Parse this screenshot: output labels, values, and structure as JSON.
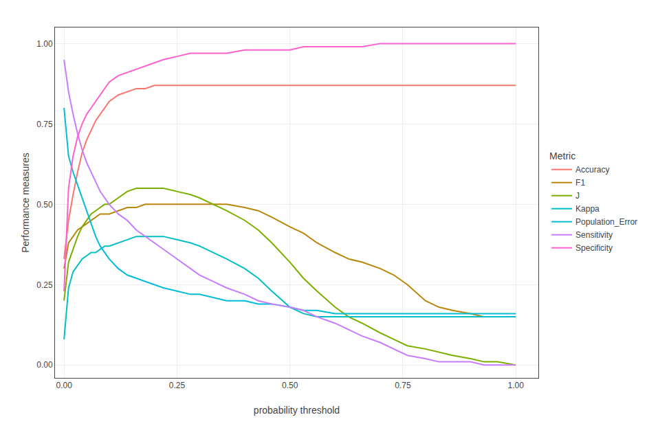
{
  "chart_data": {
    "type": "line",
    "xlabel": "probability threshold",
    "ylabel": "Performance measures",
    "legend_title": "Metric",
    "legend": "right",
    "grid": true,
    "xlim": [
      -0.02,
      1.05
    ],
    "ylim": [
      -0.04,
      1.05
    ],
    "xticks": [
      {
        "value": 0.0,
        "label": "0.00"
      },
      {
        "value": 0.25,
        "label": "0.25"
      },
      {
        "value": 0.5,
        "label": "0.50"
      },
      {
        "value": 0.75,
        "label": "0.75"
      },
      {
        "value": 1.0,
        "label": "1.00"
      }
    ],
    "yticks": [
      {
        "value": 0.0,
        "label": "0.00"
      },
      {
        "value": 0.25,
        "label": "0.25"
      },
      {
        "value": 0.5,
        "label": "0.50"
      },
      {
        "value": 0.75,
        "label": "0.75"
      },
      {
        "value": 1.0,
        "label": "1.00"
      }
    ],
    "x": [
      0.0,
      0.01,
      0.02,
      0.03,
      0.04,
      0.05,
      0.06,
      0.07,
      0.08,
      0.09,
      0.1,
      0.12,
      0.14,
      0.16,
      0.18,
      0.2,
      0.22,
      0.25,
      0.28,
      0.3,
      0.33,
      0.36,
      0.4,
      0.43,
      0.46,
      0.5,
      0.53,
      0.56,
      0.6,
      0.63,
      0.66,
      0.7,
      0.73,
      0.76,
      0.8,
      0.83,
      0.86,
      0.9,
      0.93,
      0.96,
      1.0
    ],
    "series": [
      {
        "name": "Accuracy",
        "color": "#F8766D",
        "values": [
          0.33,
          0.45,
          0.53,
          0.6,
          0.66,
          0.7,
          0.73,
          0.76,
          0.78,
          0.8,
          0.82,
          0.84,
          0.85,
          0.86,
          0.86,
          0.87,
          0.87,
          0.87,
          0.87,
          0.87,
          0.87,
          0.87,
          0.87,
          0.87,
          0.87,
          0.87,
          0.87,
          0.87,
          0.87,
          0.87,
          0.87,
          0.87,
          0.87,
          0.87,
          0.87,
          0.87,
          0.87,
          0.87,
          0.87,
          0.87,
          0.87
        ]
      },
      {
        "name": "F1",
        "color": "#B8860B",
        "values": [
          0.3,
          0.38,
          0.4,
          0.42,
          0.43,
          0.44,
          0.45,
          0.46,
          0.47,
          0.47,
          0.47,
          0.48,
          0.49,
          0.49,
          0.5,
          0.5,
          0.5,
          0.5,
          0.5,
          0.5,
          0.5,
          0.5,
          0.49,
          0.48,
          0.46,
          0.43,
          0.41,
          0.38,
          0.35,
          0.33,
          0.32,
          0.3,
          0.28,
          0.25,
          0.2,
          0.18,
          0.17,
          0.16,
          0.15,
          0.15,
          0.15
        ]
      },
      {
        "name": "J",
        "color": "#7CAE00",
        "values": [
          0.2,
          0.32,
          0.36,
          0.4,
          0.43,
          0.45,
          0.47,
          0.48,
          0.49,
          0.5,
          0.5,
          0.52,
          0.54,
          0.55,
          0.55,
          0.55,
          0.55,
          0.54,
          0.53,
          0.52,
          0.5,
          0.48,
          0.45,
          0.42,
          0.38,
          0.32,
          0.27,
          0.23,
          0.18,
          0.15,
          0.13,
          0.1,
          0.08,
          0.06,
          0.05,
          0.04,
          0.03,
          0.02,
          0.01,
          0.01,
          0.0
        ]
      },
      {
        "name": "Kappa",
        "color": "#00BFC4",
        "values": [
          0.08,
          0.24,
          0.29,
          0.31,
          0.33,
          0.34,
          0.35,
          0.35,
          0.36,
          0.37,
          0.37,
          0.38,
          0.39,
          0.4,
          0.4,
          0.4,
          0.4,
          0.39,
          0.38,
          0.37,
          0.35,
          0.33,
          0.3,
          0.27,
          0.23,
          0.18,
          0.16,
          0.15,
          0.15,
          0.15,
          0.15,
          0.15,
          0.15,
          0.15,
          0.15,
          0.15,
          0.15,
          0.15,
          0.15,
          0.15,
          0.15
        ]
      },
      {
        "name": "Population_Error",
        "color": "#00BCD8",
        "values": [
          0.8,
          0.65,
          0.6,
          0.56,
          0.52,
          0.48,
          0.44,
          0.4,
          0.37,
          0.35,
          0.33,
          0.3,
          0.28,
          0.27,
          0.26,
          0.25,
          0.24,
          0.23,
          0.22,
          0.22,
          0.21,
          0.2,
          0.2,
          0.19,
          0.19,
          0.18,
          0.17,
          0.17,
          0.16,
          0.16,
          0.16,
          0.16,
          0.16,
          0.16,
          0.16,
          0.16,
          0.16,
          0.16,
          0.16,
          0.16,
          0.16
        ]
      },
      {
        "name": "Sensitivity",
        "color": "#C77CFF",
        "values": [
          0.95,
          0.85,
          0.78,
          0.72,
          0.67,
          0.63,
          0.6,
          0.57,
          0.54,
          0.52,
          0.5,
          0.47,
          0.45,
          0.42,
          0.4,
          0.38,
          0.36,
          0.33,
          0.3,
          0.28,
          0.26,
          0.24,
          0.22,
          0.2,
          0.19,
          0.18,
          0.17,
          0.15,
          0.13,
          0.11,
          0.09,
          0.07,
          0.05,
          0.03,
          0.02,
          0.01,
          0.01,
          0.01,
          0.0,
          0.0,
          0.0
        ]
      },
      {
        "name": "Specificity",
        "color": "#FF61CC",
        "values": [
          0.23,
          0.55,
          0.65,
          0.71,
          0.75,
          0.78,
          0.8,
          0.82,
          0.84,
          0.86,
          0.88,
          0.9,
          0.91,
          0.92,
          0.93,
          0.94,
          0.95,
          0.96,
          0.97,
          0.97,
          0.97,
          0.97,
          0.98,
          0.98,
          0.98,
          0.98,
          0.99,
          0.99,
          0.99,
          0.99,
          0.99,
          1.0,
          1.0,
          1.0,
          1.0,
          1.0,
          1.0,
          1.0,
          1.0,
          1.0,
          1.0
        ]
      }
    ]
  }
}
